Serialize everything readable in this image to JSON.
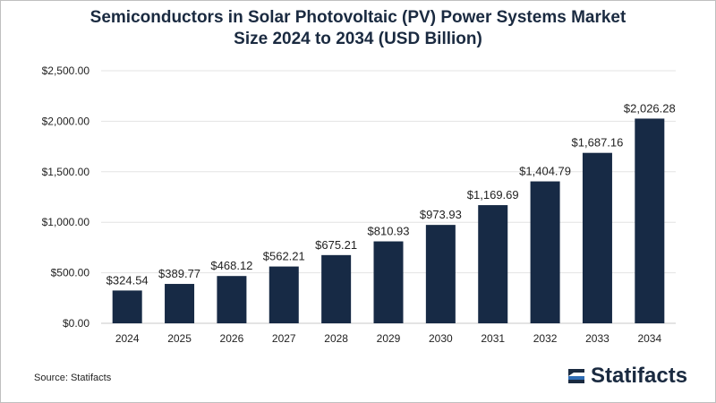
{
  "chart_data": {
    "type": "bar",
    "title_line1": "Semiconductors in Solar Photovoltaic (PV) Power Systems Market",
    "title_line2": "Size 2024 to 2034 (USD Billion)",
    "categories": [
      "2024",
      "2025",
      "2026",
      "2027",
      "2028",
      "2029",
      "2030",
      "2031",
      "2032",
      "2033",
      "2034"
    ],
    "values": [
      324.54,
      389.77,
      468.12,
      562.21,
      675.21,
      810.93,
      973.93,
      1169.69,
      1404.79,
      1687.16,
      2026.28
    ],
    "value_labels": [
      "$324.54",
      "$389.77",
      "$468.12",
      "$562.21",
      "$675.21",
      "$810.93",
      "$973.93",
      "$1,169.69",
      "$1,404.79",
      "$1,687.16",
      "$2,026.28"
    ],
    "yticks": [
      0,
      500,
      1000,
      1500,
      2000,
      2500
    ],
    "ytick_labels": [
      "$0.00",
      "$500.00",
      "$1,000.00",
      "$1,500.00",
      "$2,000.00",
      "$2,500.00"
    ],
    "ylim": [
      0,
      2500
    ],
    "grid": true,
    "bar_color": "#172a45",
    "grid_color": "#e3e3e3"
  },
  "footer": {
    "source": "Source: Statifacts",
    "logo_text": "Statifacts",
    "logo_icon": "statifacts-logo-icon"
  }
}
